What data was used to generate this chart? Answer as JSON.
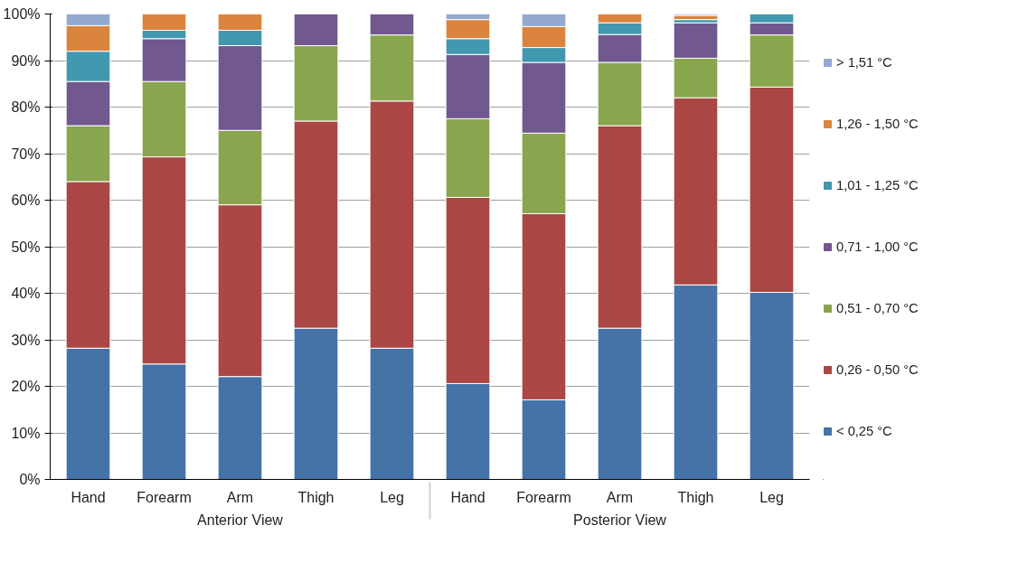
{
  "chart_data": {
    "type": "bar",
    "stacked": true,
    "categories": [
      "Hand",
      "Forearm",
      "Arm",
      "Thigh",
      "Leg",
      "Hand",
      "Forearm",
      "Arm",
      "Thigh",
      "Leg"
    ],
    "annotations": [
      "Anterior View",
      "Posterior View"
    ],
    "series": [
      {
        "name": "< 0,25 °C",
        "color": "#4572a7",
        "values": [
          28.2,
          24.8,
          22.1,
          32.5,
          28.2,
          20.6,
          17.1,
          32.5,
          41.8,
          40.2
        ]
      },
      {
        "name": "0,26 - 0,50 °C",
        "color": "#aa4643",
        "values": [
          35.8,
          44.5,
          36.9,
          44.5,
          53.1,
          40.0,
          40.0,
          43.5,
          40.2,
          44.1
        ]
      },
      {
        "name": "0,51 - 0,70 °C",
        "color": "#89a54e",
        "values": [
          12.0,
          16.2,
          16.0,
          16.2,
          14.2,
          16.9,
          17.3,
          13.6,
          8.5,
          11.2
        ]
      },
      {
        "name": "0,71 - 1,00 °C",
        "color": "#71588f",
        "values": [
          9.5,
          9.2,
          18.2,
          6.8,
          4.5,
          13.8,
          15.2,
          6.0,
          7.6,
          2.6
        ]
      },
      {
        "name": "1,01 - 1,25 °C",
        "color": "#4198af",
        "values": [
          6.5,
          1.8,
          3.3,
          0,
          0,
          3.4,
          3.2,
          2.5,
          0.7,
          1.9
        ]
      },
      {
        "name": "1,26 - 1,50 °C",
        "color": "#db843d",
        "values": [
          5.5,
          3.5,
          3.5,
          0,
          0,
          4.1,
          4.5,
          1.9,
          0.9,
          0
        ]
      },
      {
        "name": "> 1,51 °C",
        "color": "#93a9cf",
        "values": [
          2.5,
          0,
          0,
          0,
          0,
          1.2,
          2.7,
          0,
          0.3,
          0
        ]
      }
    ],
    "ylim": [
      0,
      100
    ],
    "yticks": [
      {
        "value": 0,
        "label": "0%"
      },
      {
        "value": 10,
        "label": "10%"
      },
      {
        "value": 20,
        "label": "20%"
      },
      {
        "value": 30,
        "label": "30%"
      },
      {
        "value": 40,
        "label": "40%"
      },
      {
        "value": 50,
        "label": "50%"
      },
      {
        "value": 60,
        "label": "60%"
      },
      {
        "value": 70,
        "label": "70%"
      },
      {
        "value": 80,
        "label": "80%"
      },
      {
        "value": 90,
        "label": "90%"
      },
      {
        "value": 100,
        "label": "100%"
      }
    ],
    "grid": "y",
    "legend": "right"
  }
}
